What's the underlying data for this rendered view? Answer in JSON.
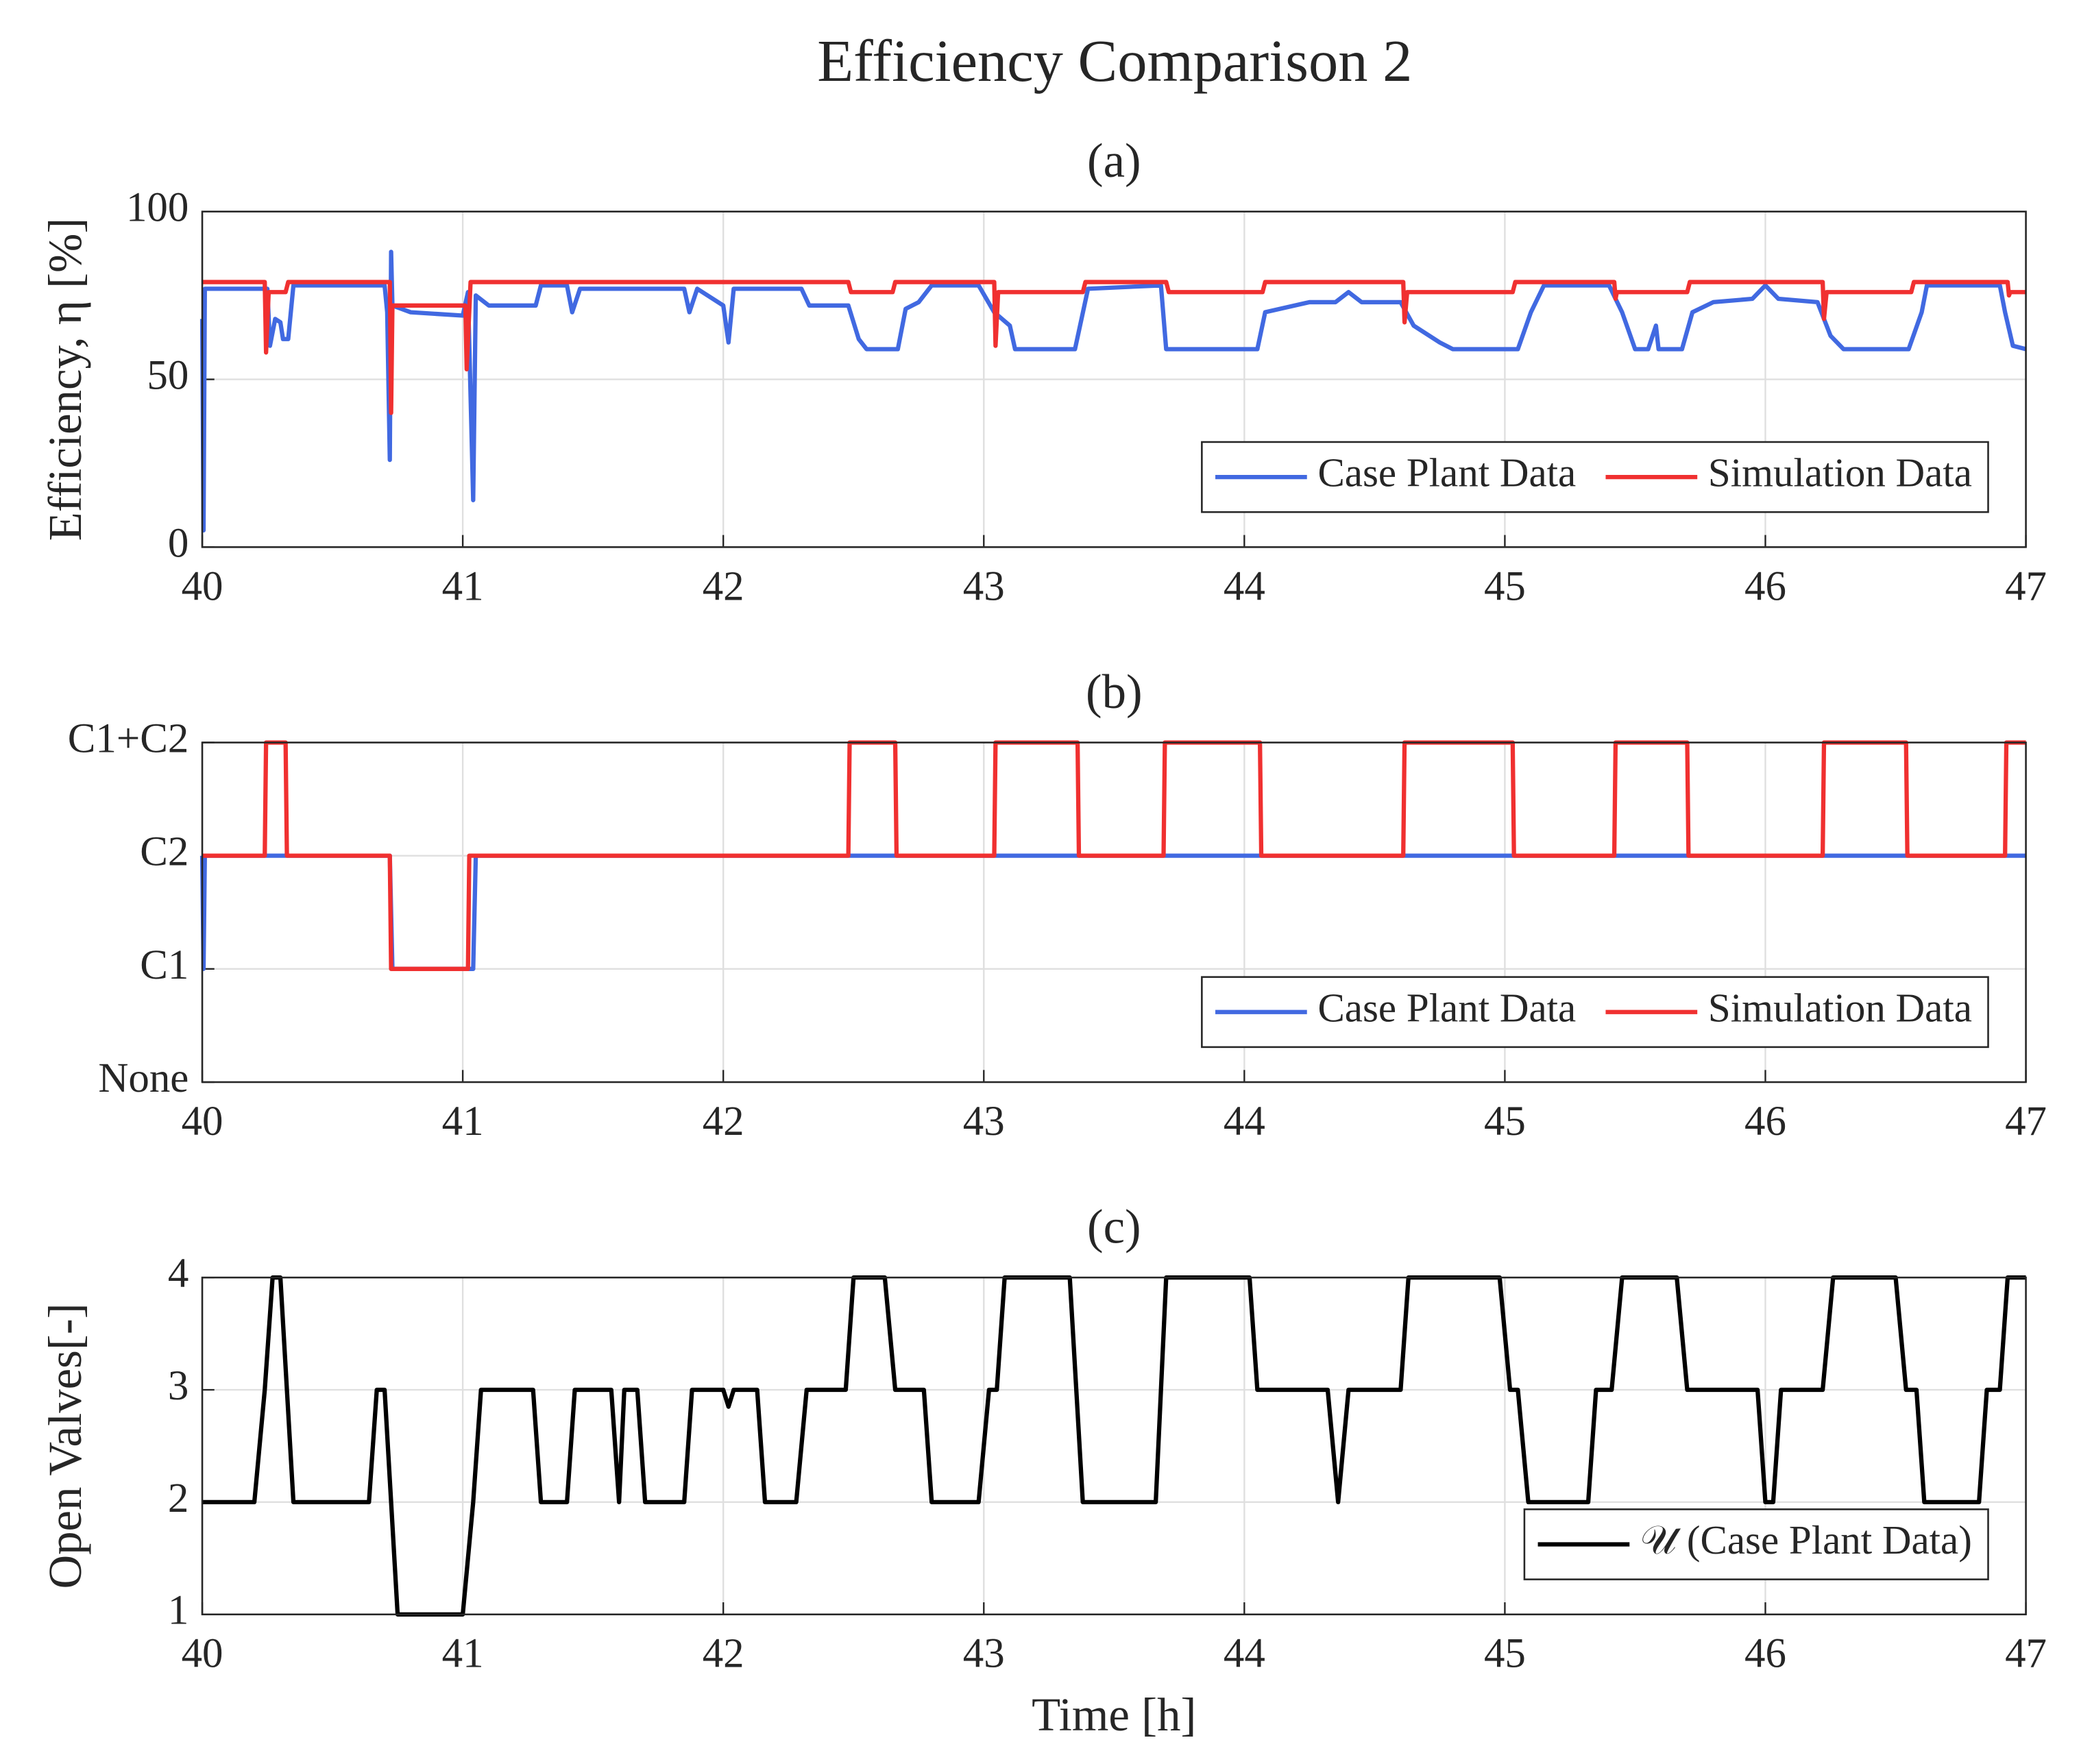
{
  "title": "Efficiency Comparison 2",
  "chart_data": [
    {
      "type": "line",
      "title": "(a)",
      "ylabel": "Efficiency, η [%]",
      "xlim": [
        40,
        47
      ],
      "xticks": [
        40,
        41,
        42,
        43,
        44,
        45,
        46,
        47
      ],
      "ylim": [
        0,
        100
      ],
      "yticks": [
        0,
        50,
        100
      ],
      "grid": true,
      "legend": "lower right",
      "series": [
        {
          "name": "Case Plant Data",
          "color": "#4169e1",
          "x": [
            40.0,
            40.005,
            40.01,
            40.25,
            40.26,
            40.28,
            40.3,
            40.31,
            40.33,
            40.35,
            40.7,
            40.71,
            40.72,
            40.725,
            40.73,
            40.8,
            41.0,
            41.02,
            41.04,
            41.05,
            41.1,
            41.28,
            41.3,
            41.4,
            41.42,
            41.45,
            41.85,
            41.87,
            41.9,
            42.0,
            42.02,
            42.04,
            42.3,
            42.33,
            42.48,
            42.52,
            42.55,
            42.67,
            42.7,
            42.75,
            42.8,
            42.98,
            43.04,
            43.1,
            43.12,
            43.35,
            43.4,
            43.68,
            43.7,
            44.05,
            44.08,
            44.25,
            44.35,
            44.4,
            44.45,
            44.6,
            44.65,
            44.75,
            44.8,
            45.05,
            45.1,
            45.15,
            45.4,
            45.45,
            45.5,
            45.55,
            45.58,
            45.59,
            45.68,
            45.72,
            45.8,
            45.95,
            46.0,
            46.05,
            46.2,
            46.25,
            46.3,
            46.55,
            46.6,
            46.62,
            46.9,
            46.92,
            46.95,
            47.0
          ],
          "values": [
            68,
            5,
            77,
            77,
            60,
            68,
            67,
            62,
            62,
            78,
            78,
            70,
            26,
            88,
            72,
            70,
            69,
            76,
            14,
            75,
            72,
            72,
            78,
            78,
            70,
            77,
            77,
            70,
            77,
            72,
            61,
            77,
            77,
            72,
            72,
            62,
            59,
            59,
            71,
            73,
            78,
            78,
            70,
            66,
            59,
            59,
            77,
            78,
            59,
            59,
            70,
            73,
            73,
            76,
            73,
            73,
            66,
            61,
            59,
            59,
            70,
            78,
            78,
            70,
            59,
            59,
            66,
            59,
            59,
            70,
            73,
            74,
            78,
            74,
            73,
            63,
            59,
            59,
            70,
            78,
            78,
            70,
            60,
            59
          ]
        },
        {
          "name": "Simulation Data",
          "color": "#f03030",
          "x": [
            40.0,
            40.24,
            40.245,
            40.255,
            40.32,
            40.33,
            40.72,
            40.725,
            40.73,
            41.01,
            41.015,
            41.03,
            42.48,
            42.49,
            42.65,
            42.66,
            43.04,
            43.045,
            43.055,
            43.38,
            43.39,
            43.7,
            43.71,
            44.07,
            44.08,
            44.61,
            44.615,
            44.625,
            45.03,
            45.04,
            45.42,
            45.425,
            45.43,
            45.7,
            45.71,
            46.22,
            46.225,
            46.235,
            46.56,
            46.57,
            46.93,
            46.935,
            46.94,
            47.0
          ],
          "values": [
            79,
            79,
            58,
            76,
            76,
            79,
            79,
            40,
            72,
            72,
            53,
            79,
            79,
            76,
            76,
            79,
            79,
            60,
            76,
            76,
            79,
            79,
            76,
            76,
            79,
            79,
            67,
            76,
            76,
            79,
            79,
            74,
            76,
            76,
            79,
            79,
            68,
            76,
            76,
            79,
            79,
            75,
            76,
            76
          ]
        }
      ]
    },
    {
      "type": "line",
      "title": "(b)",
      "xlim": [
        40,
        47
      ],
      "xticks": [
        40,
        41,
        42,
        43,
        44,
        45,
        46,
        47
      ],
      "ylim": [
        0,
        3
      ],
      "yticks": [
        {
          "value": 0,
          "label": "None"
        },
        {
          "value": 1,
          "label": "C1"
        },
        {
          "value": 2,
          "label": "C2"
        },
        {
          "value": 3,
          "label": "C1+C2"
        }
      ],
      "grid": true,
      "legend": "lower right",
      "series": [
        {
          "name": "Case Plant Data",
          "color": "#4169e1",
          "x": [
            40.0,
            40.005,
            40.01,
            40.72,
            40.73,
            41.04,
            41.05,
            47.0
          ],
          "values": [
            2,
            1,
            2,
            2,
            1,
            1,
            2,
            2
          ]
        },
        {
          "name": "Simulation Data",
          "color": "#f03030",
          "x": [
            40.0,
            40.24,
            40.245,
            40.32,
            40.325,
            40.72,
            40.725,
            41.02,
            41.025,
            42.48,
            42.485,
            42.66,
            42.665,
            43.04,
            43.045,
            43.36,
            43.365,
            43.69,
            43.695,
            44.06,
            44.065,
            44.61,
            44.615,
            45.03,
            45.035,
            45.42,
            45.425,
            45.7,
            45.705,
            46.22,
            46.225,
            46.54,
            46.545,
            46.92,
            46.925,
            47.0
          ],
          "values": [
            2,
            2,
            3,
            3,
            2,
            2,
            1,
            1,
            2,
            2,
            3,
            3,
            2,
            2,
            3,
            3,
            2,
            2,
            3,
            3,
            2,
            2,
            3,
            3,
            2,
            2,
            3,
            3,
            2,
            2,
            3,
            3,
            2,
            2,
            3,
            3
          ]
        }
      ]
    },
    {
      "type": "line",
      "title": "(c)",
      "xlabel": "Time [h]",
      "ylabel": "Open Valves[-]",
      "xlim": [
        40,
        47
      ],
      "xticks": [
        40,
        41,
        42,
        43,
        44,
        45,
        46,
        47
      ],
      "ylim": [
        1,
        4
      ],
      "yticks": [
        1,
        2,
        3,
        4
      ],
      "grid": true,
      "legend": "lower right",
      "series": [
        {
          "name": "𝒰 (Case Plant Data)",
          "color": "#000000",
          "x": [
            40.0,
            40.2,
            40.24,
            40.27,
            40.3,
            40.35,
            40.64,
            40.67,
            40.7,
            40.75,
            41.0,
            41.04,
            41.07,
            41.27,
            41.3,
            41.4,
            41.43,
            41.57,
            41.6,
            41.62,
            41.67,
            41.7,
            41.85,
            41.88,
            42.0,
            42.02,
            42.04,
            42.13,
            42.16,
            42.28,
            42.32,
            42.47,
            42.5,
            42.62,
            42.66,
            42.77,
            42.8,
            42.98,
            43.02,
            43.05,
            43.08,
            43.33,
            43.38,
            43.66,
            43.7,
            44.02,
            44.05,
            44.32,
            44.36,
            44.4,
            44.6,
            44.63,
            44.98,
            45.02,
            45.05,
            45.09,
            45.32,
            45.35,
            45.41,
            45.45,
            45.66,
            45.7,
            45.97,
            46.0,
            46.03,
            46.06,
            46.22,
            46.26,
            46.5,
            46.54,
            46.58,
            46.61,
            46.82,
            46.85,
            46.9,
            46.93,
            47.0
          ],
          "values": [
            2,
            2,
            3,
            4,
            4,
            2,
            2,
            3,
            3,
            1,
            1,
            2,
            3,
            3,
            2,
            2,
            3,
            3,
            2,
            3,
            3,
            2,
            2,
            3,
            3,
            2.85,
            3,
            3,
            2,
            2,
            3,
            3,
            4,
            4,
            3,
            3,
            2,
            2,
            3,
            3,
            4,
            4,
            2,
            2,
            4,
            4,
            3,
            3,
            2,
            3,
            3,
            4,
            4,
            3,
            3,
            2,
            2,
            3,
            3,
            4,
            4,
            3,
            3,
            2,
            2,
            3,
            3,
            4,
            4,
            3,
            3,
            2,
            2,
            3,
            3,
            4,
            4
          ]
        }
      ]
    }
  ]
}
